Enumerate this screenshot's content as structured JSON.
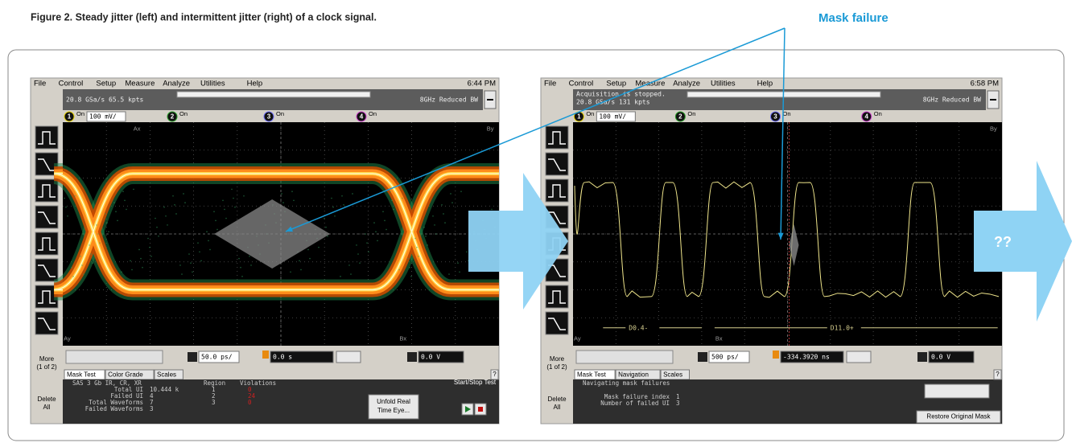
{
  "caption": "Figure 2.  Steady jitter (left) and intermittent jitter (right) of a clock signal.",
  "callout": "Mask failure",
  "next_label": "??",
  "screens": [
    {
      "menu": [
        "File",
        "Control",
        "Setup",
        "Measure",
        "Analyze",
        "Utilities",
        "Help"
      ],
      "clock": "6:44 PM",
      "status_lines": [
        "20.8 GSa/s   65.5 kpts"
      ],
      "bandwidth": "8GHz Reduced BW",
      "channels": [
        {
          "label": "1",
          "state": "On",
          "scale": "100 mV/"
        },
        {
          "label": "2",
          "state": "On"
        },
        {
          "label": "3",
          "state": "On"
        },
        {
          "label": "4",
          "state": "On"
        }
      ],
      "markers": [
        "Ax",
        "By",
        "Ay",
        "Bx"
      ],
      "side_buttons": [
        [
          "More",
          "(1 of 2)"
        ],
        [
          "Delete",
          "All"
        ]
      ],
      "timebase": "50.0 ps/",
      "delay": "0.0 s",
      "trigger_level": "0.0 V",
      "tabs": [
        "Mask Test",
        "Color Grade",
        "Scales"
      ],
      "help": "?",
      "info": {
        "heading": "SAS 3 Gb IR, CR, XR",
        "stats": [
          {
            "label": "Total UI",
            "value": "10.444 k"
          },
          {
            "label": "Failed UI",
            "value": "4"
          },
          {
            "label": "Total Waveforms",
            "value": "7"
          },
          {
            "label": "Failed Waveforms",
            "value": "3"
          }
        ],
        "table": {
          "columns": [
            "Region",
            "Violations"
          ],
          "rows": [
            [
              "1",
              "0"
            ],
            [
              "2",
              "24"
            ],
            [
              "3",
              "0"
            ]
          ]
        }
      },
      "button": [
        "Unfold Real",
        "Time Eye..."
      ],
      "test_label": "Start/Stop Test"
    },
    {
      "menu": [
        "File",
        "Control",
        "Setup",
        "Measure",
        "Analyze",
        "Utilities",
        "Help"
      ],
      "clock": "6:58 PM",
      "status_lines": [
        "Acquisition is stopped.",
        "20.8 GSa/s   131 kpts"
      ],
      "bandwidth": "8GHz Reduced BW",
      "channels": [
        {
          "label": "1",
          "state": "On",
          "scale": "100 mV/"
        },
        {
          "label": "2",
          "state": "On"
        },
        {
          "label": "3",
          "state": "On"
        },
        {
          "label": "4",
          "state": "On"
        }
      ],
      "markers": [
        "By",
        "Ay",
        "Bx"
      ],
      "side_buttons": [
        [
          "More",
          "(1 of 2)"
        ],
        [
          "Delete",
          "All"
        ]
      ],
      "timebase": "500 ps/",
      "delay": "-334.3920 ns",
      "trigger_level": "0.0 V",
      "tabs": [
        "Mask Test",
        "Navigation",
        "Scales"
      ],
      "help": "?",
      "info": {
        "heading": "Navigating mask failures",
        "stats": [
          {
            "label": "Mask failure index",
            "value": "1"
          },
          {
            "label": "Number of failed UI",
            "value": "3"
          }
        ]
      },
      "bus_labels": [
        "D0.4-",
        "D11.0+"
      ],
      "restore_button": "Restore Original Mask"
    }
  ]
}
